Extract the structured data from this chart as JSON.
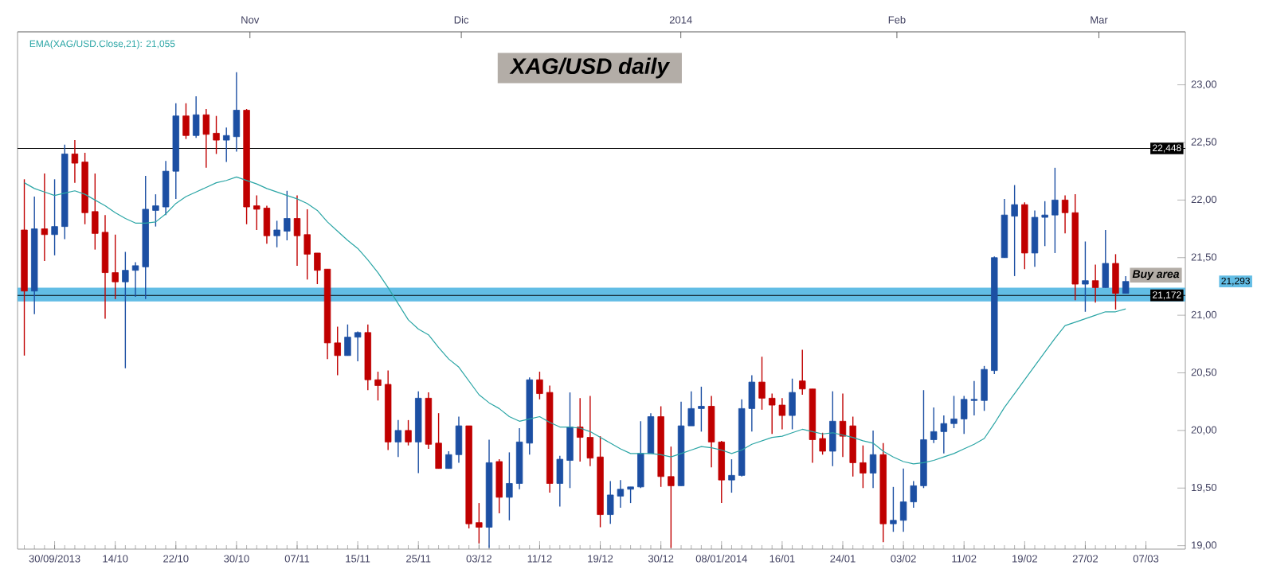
{
  "chart_data": {
    "type": "candlestick",
    "title": "XAG/USD daily",
    "categories": [
      null,
      null,
      null,
      "30/09/2013",
      null,
      null,
      null,
      null,
      null,
      "14/10",
      null,
      null,
      null,
      null,
      null,
      "22/10",
      null,
      null,
      null,
      null,
      null,
      "30/10",
      null,
      null,
      null,
      null,
      null,
      "07/11",
      null,
      null,
      null,
      null,
      null,
      "15/11",
      null,
      null,
      null,
      null,
      null,
      "25/11",
      null,
      null,
      null,
      null,
      null,
      "03/12",
      null,
      null,
      null,
      null,
      null,
      "11/12",
      null,
      null,
      null,
      null,
      null,
      "19/12",
      null,
      null,
      null,
      null,
      null,
      "30/12",
      null,
      null,
      null,
      null,
      null,
      "08/01/2014",
      null,
      null,
      null,
      null,
      null,
      "16/01",
      null,
      null,
      null,
      null,
      null,
      "24/01",
      null,
      null,
      null,
      null,
      null,
      "03/02",
      null,
      null,
      null,
      null,
      null,
      "11/02",
      null,
      null,
      null,
      null,
      null,
      "19/02",
      null,
      null,
      null,
      null,
      null,
      "27/02",
      null,
      null,
      null,
      null,
      null,
      "07/03"
    ],
    "ohlc": [
      [
        21.74,
        22.18,
        20.65,
        21.21
      ],
      [
        21.21,
        22.03,
        21.01,
        21.75
      ],
      [
        21.75,
        22.23,
        21.47,
        21.7
      ],
      [
        21.7,
        22.18,
        21.52,
        21.77
      ],
      [
        21.77,
        22.48,
        21.66,
        22.4
      ],
      [
        22.4,
        22.52,
        22.15,
        22.32
      ],
      [
        22.33,
        22.41,
        21.79,
        21.89
      ],
      [
        21.9,
        22.23,
        21.57,
        21.71
      ],
      [
        21.72,
        21.87,
        20.97,
        21.37
      ],
      [
        21.37,
        21.7,
        21.14,
        21.29
      ],
      [
        21.29,
        21.55,
        20.54,
        21.39
      ],
      [
        21.39,
        21.46,
        21.16,
        21.43
      ],
      [
        21.42,
        22.21,
        21.14,
        21.92
      ],
      [
        21.91,
        22.05,
        21.77,
        21.95
      ],
      [
        21.94,
        22.34,
        21.87,
        22.25
      ],
      [
        22.25,
        22.84,
        22.01,
        22.73
      ],
      [
        22.73,
        22.84,
        22.53,
        22.56
      ],
      [
        22.56,
        22.9,
        22.54,
        22.74
      ],
      [
        22.74,
        22.79,
        22.28,
        22.57
      ],
      [
        22.58,
        22.73,
        22.4,
        22.52
      ],
      [
        22.52,
        22.63,
        22.33,
        22.56
      ],
      [
        22.55,
        23.11,
        22.42,
        22.78
      ],
      [
        22.78,
        22.79,
        21.79,
        21.94
      ],
      [
        21.95,
        22.04,
        21.74,
        21.92
      ],
      [
        21.93,
        21.95,
        21.62,
        21.69
      ],
      [
        21.69,
        21.82,
        21.59,
        21.74
      ],
      [
        21.73,
        22.08,
        21.65,
        21.84
      ],
      [
        21.84,
        22.04,
        21.43,
        21.69
      ],
      [
        21.7,
        21.92,
        21.31,
        21.53
      ],
      [
        21.54,
        21.54,
        21.27,
        21.39
      ],
      [
        21.4,
        21.4,
        20.62,
        20.76
      ],
      [
        20.76,
        20.9,
        20.48,
        20.65
      ],
      [
        20.65,
        20.92,
        20.65,
        20.81
      ],
      [
        20.81,
        20.86,
        20.6,
        20.85
      ],
      [
        20.85,
        20.92,
        20.35,
        20.44
      ],
      [
        20.44,
        20.51,
        20.26,
        20.39
      ],
      [
        20.4,
        20.52,
        19.83,
        19.9
      ],
      [
        19.9,
        20.09,
        19.77,
        20.0
      ],
      [
        20.0,
        20.09,
        19.87,
        19.9
      ],
      [
        19.9,
        20.34,
        19.63,
        20.28
      ],
      [
        20.28,
        20.33,
        19.84,
        19.88
      ],
      [
        19.89,
        20.15,
        19.67,
        19.67
      ],
      [
        19.67,
        19.82,
        19.67,
        19.79
      ],
      [
        19.79,
        20.12,
        19.72,
        20.04
      ],
      [
        20.04,
        20.04,
        19.15,
        19.19
      ],
      [
        19.2,
        19.37,
        19.02,
        19.16
      ],
      [
        19.16,
        19.92,
        18.98,
        19.72
      ],
      [
        19.73,
        19.75,
        19.28,
        19.42
      ],
      [
        19.42,
        19.81,
        19.22,
        19.54
      ],
      [
        19.54,
        20.02,
        19.49,
        19.9
      ],
      [
        19.89,
        20.46,
        19.79,
        20.44
      ],
      [
        20.44,
        20.51,
        20.27,
        20.32
      ],
      [
        20.33,
        20.39,
        19.46,
        19.54
      ],
      [
        19.54,
        19.78,
        19.34,
        19.75
      ],
      [
        19.74,
        20.33,
        19.5,
        20.03
      ],
      [
        20.03,
        20.28,
        19.73,
        19.94
      ],
      [
        19.94,
        20.3,
        19.69,
        19.76
      ],
      [
        19.77,
        19.95,
        19.16,
        19.27
      ],
      [
        19.27,
        19.56,
        19.19,
        19.44
      ],
      [
        19.43,
        19.57,
        19.33,
        19.49
      ],
      [
        19.49,
        19.51,
        19.37,
        19.51
      ],
      [
        19.51,
        20.08,
        19.5,
        19.8
      ],
      [
        19.8,
        20.15,
        19.8,
        20.12
      ],
      [
        20.12,
        20.21,
        19.51,
        19.6
      ],
      [
        19.6,
        19.86,
        18.98,
        19.52
      ],
      [
        19.52,
        20.25,
        19.52,
        20.04
      ],
      [
        20.04,
        20.34,
        20.04,
        20.19
      ],
      [
        20.19,
        20.38,
        19.99,
        20.21
      ],
      [
        20.21,
        20.3,
        19.68,
        19.9
      ],
      [
        19.9,
        19.91,
        19.37,
        19.57
      ],
      [
        19.57,
        19.75,
        19.46,
        19.61
      ],
      [
        19.61,
        20.27,
        19.6,
        20.19
      ],
      [
        20.19,
        20.48,
        19.99,
        20.42
      ],
      [
        20.42,
        20.64,
        20.18,
        20.28
      ],
      [
        20.28,
        20.32,
        19.97,
        20.22
      ],
      [
        20.22,
        20.28,
        20.01,
        20.13
      ],
      [
        20.13,
        20.45,
        20.01,
        20.33
      ],
      [
        20.43,
        20.7,
        20.31,
        20.36
      ],
      [
        20.36,
        20.36,
        19.72,
        19.92
      ],
      [
        19.93,
        19.98,
        19.79,
        19.82
      ],
      [
        19.82,
        20.34,
        19.69,
        20.08
      ],
      [
        20.08,
        20.32,
        19.77,
        19.95
      ],
      [
        20.04,
        20.12,
        19.6,
        19.72
      ],
      [
        19.72,
        19.87,
        19.5,
        19.63
      ],
      [
        19.63,
        20.0,
        19.5,
        19.79
      ],
      [
        19.79,
        19.89,
        19.03,
        19.19
      ],
      [
        19.19,
        19.51,
        19.12,
        19.22
      ],
      [
        19.22,
        19.67,
        19.12,
        19.38
      ],
      [
        19.38,
        19.56,
        19.33,
        19.52
      ],
      [
        19.52,
        20.35,
        19.5,
        19.92
      ],
      [
        19.92,
        20.2,
        19.89,
        19.99
      ],
      [
        19.99,
        20.13,
        19.8,
        20.06
      ],
      [
        20.06,
        20.3,
        20.02,
        20.1
      ],
      [
        20.1,
        20.3,
        19.97,
        20.27
      ],
      [
        20.26,
        20.43,
        20.13,
        20.27
      ],
      [
        20.26,
        20.56,
        20.17,
        20.53
      ],
      [
        20.52,
        21.51,
        20.49,
        21.5
      ],
      [
        21.5,
        22.01,
        21.5,
        21.87
      ],
      [
        21.86,
        22.13,
        21.34,
        21.96
      ],
      [
        21.96,
        21.98,
        21.4,
        21.54
      ],
      [
        21.54,
        21.91,
        21.42,
        21.85
      ],
      [
        21.85,
        21.99,
        21.6,
        21.87
      ],
      [
        21.87,
        22.28,
        21.54,
        22.0
      ],
      [
        22.0,
        22.04,
        21.71,
        21.89
      ],
      [
        21.89,
        22.05,
        21.13,
        21.27
      ],
      [
        21.27,
        21.64,
        21.03,
        21.3
      ],
      [
        21.3,
        21.44,
        21.11,
        21.24
      ],
      [
        21.24,
        21.74,
        21.24,
        21.45
      ],
      [
        21.45,
        21.53,
        21.05,
        21.19
      ],
      [
        21.19,
        21.34,
        21.19,
        21.293
      ],
      null,
      null
    ],
    "colors": [
      "#c00000",
      "#1c4fa3",
      "#c00000",
      "#1c4fa3",
      "#1c4fa3",
      "#c00000",
      "#c00000",
      "#c00000",
      "#c00000",
      "#c00000",
      "#1c4fa3",
      "#1c4fa3",
      "#1c4fa3",
      "#1c4fa3",
      "#1c4fa3",
      "#1c4fa3",
      "#c00000",
      "#1c4fa3",
      "#c00000",
      "#c00000",
      "#1c4fa3",
      "#1c4fa3",
      "#c00000",
      "#c00000",
      "#c00000",
      "#1c4fa3",
      "#1c4fa3",
      "#c00000",
      "#c00000",
      "#c00000",
      "#c00000",
      "#c00000",
      "#1c4fa3",
      "#1c4fa3",
      "#c00000",
      "#c00000",
      "#c00000",
      "#1c4fa3",
      "#c00000",
      "#1c4fa3",
      "#c00000",
      "#c00000",
      "#1c4fa3",
      "#1c4fa3",
      "#c00000",
      "#c00000",
      "#1c4fa3",
      "#c00000",
      "#1c4fa3",
      "#1c4fa3",
      "#1c4fa3",
      "#c00000",
      "#c00000",
      "#1c4fa3",
      "#1c4fa3",
      "#c00000",
      "#c00000",
      "#c00000",
      "#1c4fa3",
      "#1c4fa3",
      "#1c4fa3",
      "#1c4fa3",
      "#1c4fa3",
      "#c00000",
      "#c00000",
      "#1c4fa3",
      "#1c4fa3",
      "#1c4fa3",
      "#c00000",
      "#c00000",
      "#1c4fa3",
      "#1c4fa3",
      "#1c4fa3",
      "#c00000",
      "#c00000",
      "#c00000",
      "#1c4fa3",
      "#c00000",
      "#c00000",
      "#c00000",
      "#1c4fa3",
      "#c00000",
      "#c00000",
      "#c00000",
      "#1c4fa3",
      "#c00000",
      "#1c4fa3",
      "#1c4fa3",
      "#1c4fa3",
      "#1c4fa3",
      "#1c4fa3",
      "#1c4fa3",
      "#1c4fa3",
      "#1c4fa3",
      "#1c4fa3",
      "#1c4fa3",
      "#1c4fa3",
      "#1c4fa3",
      "#1c4fa3",
      "#c00000",
      "#1c4fa3",
      "#1c4fa3",
      "#1c4fa3",
      "#c00000",
      "#c00000",
      "#1c4fa3",
      "#c00000",
      "#1c4fa3",
      "#c00000",
      "#1c4fa3",
      null,
      null
    ],
    "series": [
      {
        "type": "line",
        "name": "EMA(XAG/USD.Close,21): 21,055",
        "color": "#2aa5a5",
        "values": [
          22.15,
          22.1,
          22.07,
          22.04,
          22.06,
          22.08,
          22.05,
          22.0,
          21.95,
          21.89,
          21.84,
          21.8,
          21.8,
          21.81,
          21.88,
          21.97,
          22.03,
          22.07,
          22.11,
          22.15,
          22.17,
          22.2,
          22.17,
          22.14,
          22.1,
          22.07,
          22.04,
          22.01,
          21.97,
          21.91,
          21.81,
          21.73,
          21.65,
          21.58,
          21.48,
          21.37,
          21.24,
          21.1,
          20.96,
          20.88,
          20.83,
          20.72,
          20.62,
          20.55,
          20.43,
          20.31,
          20.24,
          20.19,
          20.12,
          20.08,
          20.1,
          20.12,
          20.07,
          20.03,
          20.03,
          20.02,
          19.99,
          19.94,
          19.89,
          19.84,
          19.8,
          19.8,
          19.8,
          19.79,
          19.77,
          19.8,
          19.83,
          19.86,
          19.85,
          19.83,
          19.8,
          19.83,
          19.88,
          19.91,
          19.94,
          19.95,
          19.98,
          20.01,
          19.99,
          19.97,
          19.98,
          19.96,
          19.94,
          19.91,
          19.89,
          19.82,
          19.77,
          19.73,
          19.71,
          19.72,
          19.74,
          19.77,
          19.8,
          19.84,
          19.88,
          19.93,
          20.06,
          20.2,
          20.32,
          20.44,
          20.56,
          20.68,
          20.8,
          20.91,
          20.94,
          20.97,
          21.0,
          21.03,
          21.03,
          21.055,
          null,
          null
        ]
      }
    ],
    "ylim": [
      18.97,
      23.46
    ],
    "yticks": [
      {
        "value": 19,
        "label": "19,00"
      },
      {
        "value": 19.5,
        "label": "19,50"
      },
      {
        "value": 20,
        "label": "20,00"
      },
      {
        "value": 20.5,
        "label": "20,50"
      },
      {
        "value": 21,
        "label": "21,00"
      },
      {
        "value": 21.5,
        "label": "21,50"
      },
      {
        "value": 22,
        "label": "22,00"
      },
      {
        "value": 22.5,
        "label": "22,50"
      },
      {
        "value": 23,
        "label": "23,00"
      }
    ],
    "ref_lines": [
      {
        "axis": "y",
        "value": 22.448,
        "label": "22,448"
      },
      {
        "axis": "y",
        "value": 21.172,
        "label": "21,172"
      }
    ],
    "bands": [
      {
        "axis": "y",
        "from": 21.12,
        "to": 21.24,
        "label": "Buy area",
        "color": "#62bde5"
      }
    ],
    "annotations": [
      "Nov",
      "Dic",
      "2014",
      "Feb",
      "Mar",
      "21,293"
    ],
    "legend": "top left"
  }
}
